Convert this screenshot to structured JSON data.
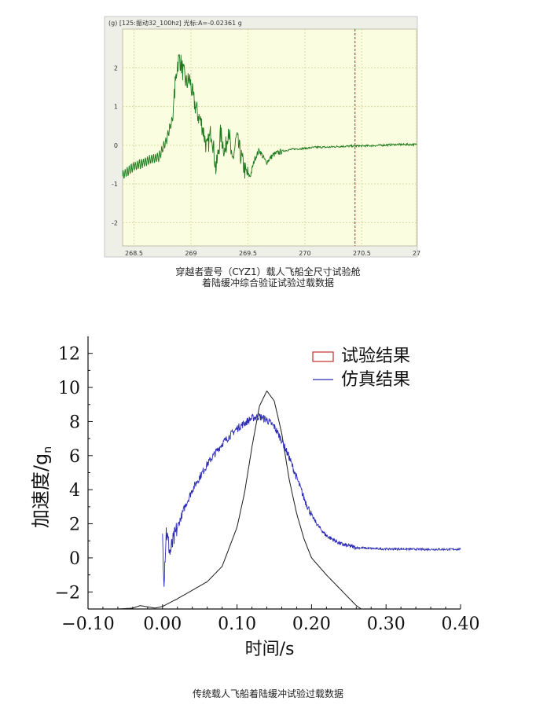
{
  "captions": {
    "top_line1": "穿越者壹号（CYZ1）载人飞船全尺寸试验舱",
    "top_line2": "着陆缓冲综合验证试验过载数据",
    "bottom": "传统载人飞船着陆缓冲试验过载数据"
  },
  "colors": {
    "test_green": "#1e7a1e",
    "cursor_red": "#cc2222",
    "sim_blue": "#2b2bb5",
    "exp_black": "#1a1a1a",
    "plot_bg": "#fbfde0",
    "legend_red": "#c03030"
  },
  "chart_data": [
    {
      "type": "line",
      "title": "",
      "header_text": "(g)  [125:振动32_100hz]  光标:A=-0.02361 g",
      "xlabel": "",
      "ylabel": "(g)",
      "xlim": [
        268.4,
        270.98
      ],
      "ylim": [
        -2.6,
        3.0
      ],
      "xticks": [
        "268.5",
        "269",
        "269.5",
        "270",
        "270.5",
        "27"
      ],
      "xtick_values": [
        268.5,
        269,
        269.5,
        270,
        270.5,
        270.98
      ],
      "yticks": [
        2,
        1,
        0,
        -1,
        -2
      ],
      "ytick_labels": [
        "2",
        "1",
        "0",
        "-1",
        "-2"
      ],
      "grid": true,
      "cursor_x": 270.44,
      "cursor_value": -0.02361,
      "series": [
        {
          "x": [
            268.4,
            268.5,
            268.62,
            268.72,
            268.78,
            268.84,
            268.86,
            268.88,
            268.9,
            268.93,
            268.96,
            268.99,
            269.02,
            269.06,
            269.1,
            269.14,
            269.18,
            269.22,
            269.26,
            269.3,
            269.33,
            269.36,
            269.4,
            269.44,
            269.48,
            269.52,
            269.56,
            269.6,
            269.66,
            269.72,
            269.8,
            269.9,
            270.0,
            270.1,
            270.2,
            270.3,
            270.44,
            270.6,
            270.8,
            270.98
          ],
          "values": [
            -0.78,
            -0.55,
            -0.4,
            -0.3,
            0.1,
            0.7,
            1.5,
            2.1,
            2.25,
            1.9,
            1.6,
            1.7,
            1.2,
            0.8,
            0.5,
            -0.1,
            0.4,
            -0.65,
            0.3,
            -0.2,
            0.5,
            -0.5,
            0.2,
            -0.3,
            -0.72,
            -0.8,
            -0.35,
            -0.12,
            -0.45,
            -0.25,
            -0.15,
            -0.1,
            -0.08,
            -0.05,
            -0.05,
            -0.03,
            -0.02,
            -0.01,
            0.02,
            0.02
          ]
        }
      ]
    },
    {
      "type": "line",
      "title": "",
      "xlabel": "时间/s",
      "ylabel": "加速度/g",
      "ylabel_subscript": "n",
      "xlim": [
        -0.1,
        0.4
      ],
      "ylim": [
        -3,
        13
      ],
      "xticks": [
        "−0.10",
        "0.00",
        "0.10",
        "0.20",
        "0.30",
        "0.40"
      ],
      "xtick_values": [
        -0.1,
        0.0,
        0.1,
        0.2,
        0.3,
        0.4
      ],
      "yticks": [
        -2,
        0,
        2,
        4,
        6,
        8,
        10,
        12
      ],
      "ytick_labels": [
        "−2",
        "0",
        "2",
        "4",
        "6",
        "8",
        "10",
        "12"
      ],
      "legend_position": "top-right",
      "grid": false,
      "series": [
        {
          "name": "试验结果",
          "x": [
            -0.06,
            -0.04,
            -0.03,
            -0.01,
            0.0,
            0.02,
            0.04,
            0.06,
            0.08,
            0.1,
            0.11,
            0.12,
            0.13,
            0.14,
            0.15,
            0.16,
            0.17,
            0.18,
            0.19,
            0.2,
            0.22,
            0.24,
            0.26,
            0.27
          ],
          "values": [
            -3.0,
            -2.95,
            -2.8,
            -2.95,
            -2.85,
            -2.4,
            -1.9,
            -1.4,
            -0.5,
            1.8,
            3.8,
            6.5,
            8.9,
            9.8,
            9.2,
            7.3,
            4.6,
            2.6,
            1.1,
            0.0,
            -1.0,
            -1.9,
            -2.8,
            -3.1
          ]
        },
        {
          "name": "仿真结果",
          "x": [
            0.0,
            0.002,
            0.005,
            0.01,
            0.02,
            0.03,
            0.04,
            0.06,
            0.08,
            0.1,
            0.12,
            0.13,
            0.14,
            0.15,
            0.16,
            0.17,
            0.18,
            0.19,
            0.2,
            0.21,
            0.22,
            0.24,
            0.26,
            0.28,
            0.3,
            0.32,
            0.35,
            0.4
          ],
          "values": [
            1.2,
            -1.2,
            1.6,
            0.3,
            1.8,
            3.0,
            4.0,
            5.5,
            6.7,
            7.6,
            8.2,
            8.3,
            8.1,
            7.7,
            6.9,
            5.9,
            4.7,
            3.5,
            2.5,
            1.8,
            1.3,
            0.8,
            0.6,
            0.55,
            0.52,
            0.52,
            0.5,
            0.5
          ]
        }
      ]
    }
  ]
}
